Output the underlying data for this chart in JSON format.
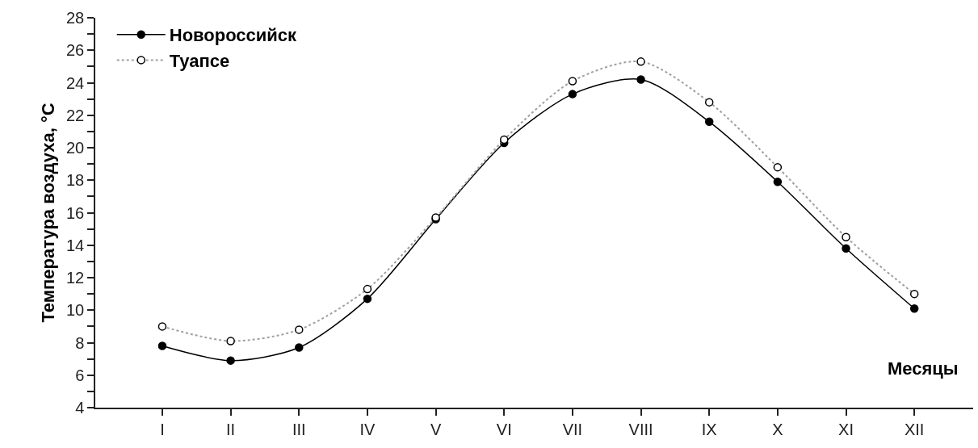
{
  "chart_data": {
    "type": "line",
    "xlabel": "Месяцы",
    "ylabel": "Температура воздуха, °C",
    "categories": [
      "I",
      "II",
      "III",
      "IV",
      "V",
      "VI",
      "VII",
      "VIII",
      "IX",
      "X",
      "XI",
      "XII"
    ],
    "series": [
      {
        "name": "Новороссийск",
        "color": "#000000",
        "marker": "circle",
        "line_style": "solid",
        "values": [
          7.8,
          6.9,
          7.7,
          10.7,
          15.6,
          20.3,
          23.3,
          24.2,
          21.6,
          17.9,
          13.8,
          10.1
        ]
      },
      {
        "name": "Туапсе",
        "color": "#a0a0a0",
        "marker": "circle-open",
        "line_style": "dotted",
        "values": [
          9.0,
          8.1,
          8.8,
          11.3,
          15.7,
          20.5,
          24.1,
          25.3,
          22.8,
          18.8,
          14.5,
          11.0
        ]
      }
    ],
    "ylim": [
      4,
      28
    ],
    "yticks": [
      4,
      {
        "value": 5,
        "label": null
      },
      6,
      {
        "value": 7,
        "label": null
      },
      8,
      {
        "value": 9,
        "label": null
      },
      10,
      {
        "value": 11,
        "label": null
      },
      12,
      {
        "value": 13,
        "label": null
      },
      14,
      {
        "value": 15,
        "label": null
      },
      16,
      {
        "value": 17,
        "label": null
      },
      18,
      {
        "value": 19,
        "label": null
      },
      20,
      {
        "value": 21,
        "label": null
      },
      22,
      {
        "value": 23,
        "label": null
      },
      24,
      {
        "value": 25,
        "label": null
      },
      26,
      {
        "value": 27,
        "label": null
      },
      28
    ],
    "legend": "top left"
  }
}
